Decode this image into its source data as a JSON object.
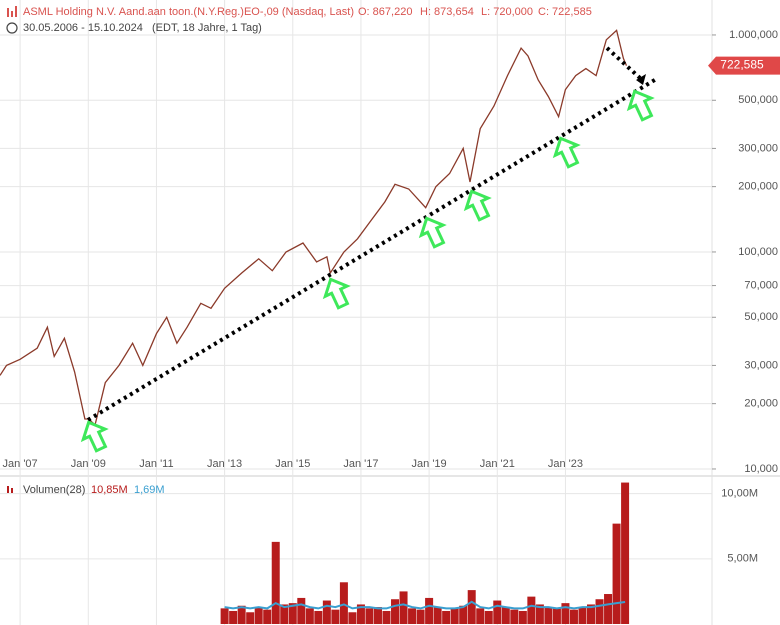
{
  "chart_data": [
    {
      "type": "line",
      "title": "ASML Holding N.V. Aand.aan toon.(N.Y.Reg.)EO-,09 (Nasdaq, Last)",
      "stats": [
        "O: 867,220",
        "H: 873,654",
        "L: 720,000",
        "C: 722,585"
      ],
      "subtitle": "30.05.2006 - 15.10.2024",
      "subtitle_note": "(EDT, 18 Jahre, 1 Tag)",
      "x": [
        2006.41,
        2006.6,
        2007.0,
        2007.5,
        2007.8,
        2008.0,
        2008.3,
        2008.6,
        2008.9,
        2009.0,
        2009.2,
        2009.5,
        2009.9,
        2010.3,
        2010.6,
        2011.0,
        2011.3,
        2011.6,
        2011.9,
        2012.3,
        2012.6,
        2013.0,
        2013.5,
        2014.0,
        2014.4,
        2014.8,
        2015.3,
        2015.7,
        2016.0,
        2016.1,
        2016.5,
        2016.9,
        2017.3,
        2017.7,
        2018.0,
        2018.4,
        2018.9,
        2019.2,
        2019.6,
        2020.0,
        2020.2,
        2020.5,
        2020.9,
        2021.3,
        2021.7,
        2021.9,
        2022.2,
        2022.5,
        2022.8,
        2023.0,
        2023.3,
        2023.6,
        2023.9,
        2024.2,
        2024.5,
        2024.7,
        2024.79
      ],
      "values": [
        27,
        30,
        32,
        36,
        45,
        33,
        40,
        28,
        17,
        17,
        16,
        25,
        30,
        38,
        30,
        42,
        50,
        38,
        45,
        58,
        55,
        68,
        80,
        93,
        82,
        100,
        110,
        90,
        95,
        80,
        100,
        115,
        140,
        170,
        205,
        195,
        160,
        200,
        230,
        300,
        210,
        370,
        470,
        650,
        870,
        800,
        620,
        520,
        420,
        560,
        650,
        700,
        650,
        950,
        1050,
        780,
        722.585
      ],
      "last_value_label": "722,585",
      "color": "#8b3a2a",
      "log_scale": true,
      "grid": true,
      "xlim": [
        2006.41,
        2027.3
      ],
      "ylim": [
        9.38,
        1449
      ],
      "xticks": [
        {
          "value": 2007,
          "label": "Jan '07"
        },
        {
          "value": 2009,
          "label": "Jan '09"
        },
        {
          "value": 2011,
          "label": "Jan '11"
        },
        {
          "value": 2013,
          "label": "Jan '13"
        },
        {
          "value": 2015,
          "label": "Jan '15"
        },
        {
          "value": 2017,
          "label": "Jan '17"
        },
        {
          "value": 2019,
          "label": "Jan '19"
        },
        {
          "value": 2021,
          "label": "Jan '21"
        },
        {
          "value": 2023,
          "label": "Jan '23"
        }
      ],
      "yticks": [
        {
          "value": 1000,
          "label": "1.000,000"
        },
        {
          "value": 500,
          "label": "500,000"
        },
        {
          "value": 300,
          "label": "300,000"
        },
        {
          "value": 200,
          "label": "200,000"
        },
        {
          "value": 100,
          "label": "100,000"
        },
        {
          "value": 70,
          "label": "70,000"
        },
        {
          "value": 50,
          "label": "50,000"
        },
        {
          "value": 30,
          "label": "30,000"
        },
        {
          "value": 20,
          "label": "20,000"
        },
        {
          "value": 10,
          "label": "10,000"
        }
      ]
    },
    {
      "type": "bar",
      "title": "Volumen(28)",
      "x": [
        2013.0,
        2013.25,
        2013.5,
        2013.75,
        2014.0,
        2014.25,
        2014.5,
        2014.75,
        2015.0,
        2015.25,
        2015.5,
        2015.75,
        2016.0,
        2016.25,
        2016.5,
        2016.75,
        2017.0,
        2017.25,
        2017.5,
        2017.75,
        2018.0,
        2018.25,
        2018.5,
        2018.75,
        2019.0,
        2019.25,
        2019.5,
        2019.75,
        2020.0,
        2020.25,
        2020.5,
        2020.75,
        2021.0,
        2021.25,
        2021.5,
        2021.75,
        2022.0,
        2022.25,
        2022.5,
        2022.75,
        2023.0,
        2023.25,
        2023.5,
        2023.75,
        2024.0,
        2024.25,
        2024.5,
        2024.75
      ],
      "series": [
        {
          "name": "10,85M",
          "color": "#b71c1c",
          "values": [
            1.2,
            1.0,
            1.4,
            0.9,
            1.3,
            1.1,
            6.3,
            1.5,
            1.6,
            2.0,
            1.2,
            1.0,
            1.8,
            1.1,
            3.2,
            0.9,
            1.5,
            1.2,
            1.3,
            1.0,
            1.9,
            2.5,
            1.2,
            1.1,
            2.0,
            1.3,
            1.0,
            1.2,
            1.4,
            2.6,
            1.2,
            1.0,
            1.8,
            1.3,
            1.1,
            1.0,
            2.1,
            1.5,
            1.3,
            1.2,
            1.6,
            1.1,
            1.3,
            1.5,
            1.9,
            2.3,
            7.7,
            10.85
          ]
        },
        {
          "name": "1,69M",
          "color": "#3a9fd0",
          "type": "line",
          "values": [
            1.3,
            1.2,
            1.3,
            1.2,
            1.3,
            1.2,
            1.6,
            1.3,
            1.4,
            1.5,
            1.3,
            1.2,
            1.4,
            1.3,
            1.5,
            1.2,
            1.3,
            1.3,
            1.2,
            1.2,
            1.4,
            1.5,
            1.3,
            1.2,
            1.4,
            1.3,
            1.2,
            1.2,
            1.3,
            1.7,
            1.3,
            1.2,
            1.4,
            1.3,
            1.2,
            1.2,
            1.4,
            1.3,
            1.3,
            1.2,
            1.3,
            1.2,
            1.3,
            1.3,
            1.4,
            1.5,
            1.6,
            1.69
          ]
        }
      ],
      "xlim": [
        2006.41,
        2027.3
      ],
      "ylim": [
        0,
        11.2
      ],
      "yticks": [
        {
          "value": 10,
          "label": "10,00M"
        },
        {
          "value": 5,
          "label": "5,00M"
        }
      ]
    }
  ]
}
